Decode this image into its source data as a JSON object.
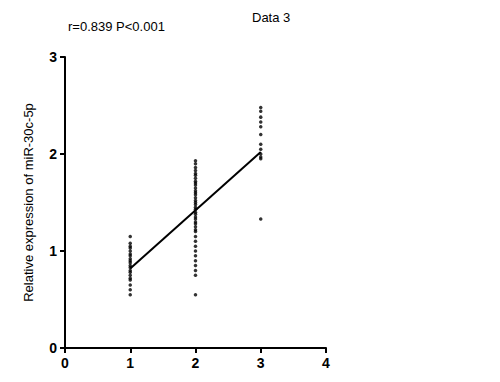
{
  "chart_data": {
    "type": "scatter",
    "title": "Data 3",
    "annotations": [
      "r=0.839 P<0.001"
    ],
    "y_label": "Relative expression of miR-30c-5p",
    "xlim": [
      0,
      4
    ],
    "xticks": [
      0,
      1,
      2,
      3,
      4
    ],
    "ylim": [
      0,
      3
    ],
    "yticks": [
      0,
      1,
      2,
      3
    ],
    "grid": false,
    "series": [
      {
        "type": "scatter",
        "color": "#000000",
        "marker": "circle",
        "x": [
          1,
          1,
          1,
          1,
          1,
          1,
          1,
          1,
          1,
          1,
          1,
          1,
          1,
          1,
          1,
          1,
          1,
          1,
          1,
          1,
          2,
          2,
          2,
          2,
          2,
          2,
          2,
          2,
          2,
          2,
          2,
          2,
          2,
          2,
          2,
          2,
          2,
          2,
          2,
          2,
          2,
          2,
          2,
          2,
          2,
          2,
          2,
          2,
          2,
          2,
          2,
          2,
          2,
          2,
          2,
          2,
          2,
          2,
          2,
          3,
          3,
          3,
          3,
          3,
          3,
          3,
          3,
          3,
          3,
          3,
          3
        ],
        "values": [
          1.15,
          1.08,
          1.05,
          1.03,
          1.0,
          0.97,
          0.95,
          0.92,
          0.9,
          0.88,
          0.85,
          0.83,
          0.8,
          0.78,
          0.75,
          0.72,
          0.7,
          0.65,
          0.6,
          0.55,
          1.93,
          1.9,
          1.86,
          1.83,
          1.8,
          1.78,
          1.75,
          1.72,
          1.7,
          1.68,
          1.65,
          1.62,
          1.6,
          1.58,
          1.55,
          1.52,
          1.5,
          1.48,
          1.45,
          1.43,
          1.4,
          1.38,
          1.35,
          1.33,
          1.3,
          1.28,
          1.25,
          1.22,
          1.2,
          1.15,
          1.1,
          1.05,
          1.0,
          0.95,
          0.9,
          0.85,
          0.8,
          0.75,
          0.55,
          2.48,
          2.44,
          2.38,
          2.33,
          2.28,
          2.2,
          2.1,
          2.05,
          2.0,
          1.97,
          1.95,
          1.33
        ]
      },
      {
        "type": "line",
        "color": "#000000",
        "line_style": "solid",
        "x": [
          1,
          3
        ],
        "values": [
          0.82,
          2.02
        ]
      }
    ]
  }
}
